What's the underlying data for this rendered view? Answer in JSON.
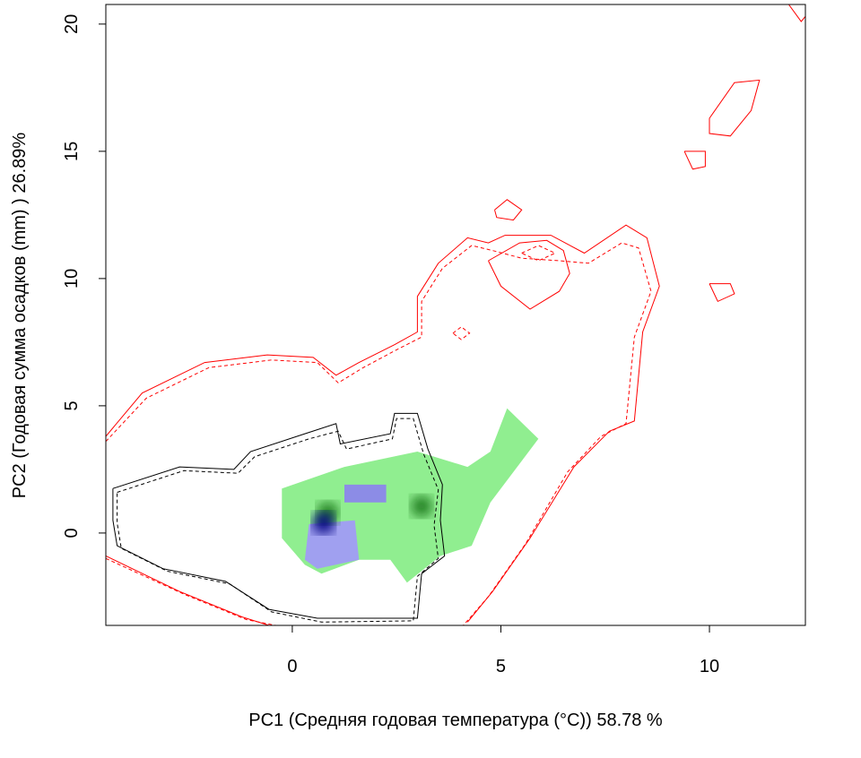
{
  "chart_data": {
    "type": "contour",
    "x_label": "PC1 (Средняя годовая температура (°C)) 58.78 %",
    "y_label": "PC2 (Годовая сумма осадков  (mm) ) 26.89%",
    "xlim": [
      -4.47,
      12.3
    ],
    "ylim": [
      -3.63,
      20.77
    ],
    "xticks": [
      0,
      5,
      10
    ],
    "yticks": [
      0,
      5,
      10,
      15,
      20
    ],
    "series": [
      {
        "color": "#90ee90",
        "style": "fill",
        "x": [
          -0.25,
          1.25,
          3.0,
          4.2,
          4.75,
          5.15,
          5.9,
          4.75,
          4.3,
          3.55,
          2.75,
          2.35,
          1.6,
          0.7,
          0.3,
          -0.25
        ],
        "values": [
          1.75,
          2.6,
          3.2,
          2.6,
          3.2,
          4.9,
          3.7,
          1.2,
          -0.5,
          -0.9,
          -1.95,
          -1.05,
          -1.05,
          -1.6,
          -1.25,
          -0.2
        ]
      },
      {
        "color": "#a0a0f0",
        "style": "fill",
        "x": [
          0.4,
          1.5,
          1.6,
          0.6,
          0.3
        ],
        "values": [
          0.35,
          0.5,
          -1.05,
          -1.4,
          -1.05
        ]
      },
      {
        "color": "#8c8ce6",
        "style": "fill",
        "x": [
          1.25,
          2.25,
          2.25,
          1.25
        ],
        "values": [
          1.9,
          1.9,
          1.2,
          1.2
        ]
      },
      {
        "color": "#1f7a1f",
        "style": "blob",
        "x": [
          0.85,
          3.1
        ],
        "values": [
          0.8,
          1.05
        ]
      },
      {
        "color": "#000080",
        "style": "blob",
        "x": [
          0.75
        ],
        "values": [
          0.4
        ]
      },
      {
        "color": "#ff0000",
        "style": "solid",
        "x": [
          -4.47,
          -3.6,
          -2.1,
          -0.6,
          0.5,
          1.05,
          1.6,
          2.45,
          3.0,
          3.0,
          3.5,
          4.2,
          4.7,
          5.1,
          6.2,
          7.0,
          8.0,
          8.5,
          8.8,
          8.4,
          8.2,
          7.6,
          6.75,
          5.7,
          4.8,
          4.2
        ],
        "values": [
          3.8,
          5.5,
          6.7,
          7.0,
          6.9,
          6.2,
          6.7,
          7.4,
          7.9,
          9.3,
          10.6,
          11.6,
          11.4,
          11.7,
          11.7,
          11.0,
          12.1,
          11.6,
          9.7,
          7.9,
          4.4,
          4.0,
          2.6,
          -0.2,
          -2.3,
          -3.5
        ]
      },
      {
        "color": "#ff0000",
        "style": "dashed",
        "x": [
          -4.47,
          -3.5,
          -2.0,
          -0.5,
          0.6,
          1.1,
          1.7,
          2.5,
          3.1,
          3.1,
          3.6,
          4.3,
          4.8,
          5.5,
          6.4,
          7.1,
          7.9,
          8.3,
          8.6,
          8.2,
          8.0,
          7.4,
          6.6,
          5.6,
          4.7,
          4.1
        ],
        "values": [
          3.6,
          5.3,
          6.5,
          6.8,
          6.7,
          5.9,
          6.5,
          7.2,
          7.7,
          9.1,
          10.4,
          11.3,
          11.1,
          10.8,
          10.7,
          10.6,
          11.4,
          11.2,
          9.5,
          7.7,
          4.3,
          3.8,
          2.4,
          -0.4,
          -2.5,
          -3.63
        ]
      },
      {
        "color": "#ff0000",
        "style": "solid",
        "x": [
          -4.47,
          -2.7,
          -1.2,
          -0.56
        ],
        "values": [
          -0.9,
          -2.3,
          -3.3,
          -3.63
        ]
      },
      {
        "color": "#ff0000",
        "style": "dashed",
        "x": [
          -4.47,
          -2.6,
          -1.1,
          -0.4
        ],
        "values": [
          -1.0,
          -2.4,
          -3.4,
          -3.63
        ]
      },
      {
        "color": "#ff0000",
        "style": "solid",
        "x": [
          4.7,
          5.0,
          5.7,
          6.4,
          6.65,
          6.5,
          6.1,
          5.45,
          4.7
        ],
        "values": [
          10.7,
          9.7,
          8.8,
          9.5,
          10.2,
          11.1,
          11.5,
          11.4,
          10.7
        ]
      },
      {
        "color": "#ff0000",
        "style": "dashed",
        "x": [
          5.5,
          5.9,
          6.3,
          5.9,
          5.5
        ],
        "values": [
          11.0,
          11.3,
          11.0,
          10.7,
          11.0
        ]
      },
      {
        "color": "#ff0000",
        "style": "dashed",
        "x": [
          3.85,
          4.05,
          4.25,
          4.05,
          3.85
        ],
        "values": [
          7.85,
          8.1,
          7.85,
          7.6,
          7.85
        ]
      },
      {
        "color": "#ff0000",
        "style": "solid",
        "x": [
          4.85,
          5.15,
          5.5,
          5.3,
          4.9,
          4.85
        ],
        "values": [
          12.7,
          13.1,
          12.7,
          12.3,
          12.4,
          12.7
        ]
      },
      {
        "color": "#ff0000",
        "style": "solid",
        "x": [
          9.4,
          9.9,
          9.9,
          9.6,
          9.4
        ],
        "values": [
          15.0,
          15.0,
          14.4,
          14.3,
          15.0
        ]
      },
      {
        "color": "#ff0000",
        "style": "solid",
        "x": [
          10.0,
          10.6,
          11.2,
          11.0,
          10.5,
          10.0,
          10.0
        ],
        "values": [
          16.3,
          17.7,
          17.8,
          16.6,
          15.6,
          15.7,
          16.3
        ]
      },
      {
        "color": "#ff0000",
        "style": "solid",
        "x": [
          10.0,
          10.5,
          10.6,
          10.2,
          10.0
        ],
        "values": [
          9.8,
          9.8,
          9.4,
          9.1,
          9.8
        ]
      },
      {
        "color": "#ff0000",
        "style": "solid",
        "x": [
          11.9,
          12.2,
          12.3
        ],
        "values": [
          20.77,
          20.1,
          20.3
        ]
      },
      {
        "color": "#000000",
        "style": "solid",
        "x": [
          -4.3,
          -2.7,
          -1.4,
          -1.0,
          0.3,
          1.05,
          1.15,
          2.35,
          2.45,
          3.0,
          3.25,
          3.6,
          3.55,
          3.65,
          3.1,
          3.0,
          0.6,
          -0.56,
          -1.6,
          -3.1,
          -4.2,
          -4.3,
          -4.3
        ],
        "values": [
          1.75,
          2.6,
          2.5,
          3.2,
          3.9,
          4.3,
          3.5,
          3.9,
          4.7,
          4.7,
          3.3,
          1.9,
          0.5,
          -0.9,
          -1.6,
          -3.35,
          -3.35,
          -3.0,
          -1.9,
          -1.4,
          -0.5,
          0.5,
          1.75
        ]
      },
      {
        "color": "#000000",
        "style": "dashed",
        "x": [
          -4.2,
          -2.6,
          -1.3,
          -0.9,
          0.4,
          1.1,
          1.3,
          2.4,
          2.5,
          2.9,
          3.15,
          3.5,
          3.4,
          3.5,
          3.0,
          2.9,
          0.7,
          -0.5,
          -1.5,
          -3.0,
          -4.1,
          -4.2,
          -4.2
        ],
        "values": [
          1.6,
          2.45,
          2.35,
          3.0,
          3.7,
          4.0,
          3.3,
          3.7,
          4.5,
          4.5,
          3.1,
          1.7,
          0.3,
          -1.0,
          -1.7,
          -3.45,
          -3.5,
          -3.1,
          -2.0,
          -1.5,
          -0.6,
          0.4,
          1.6
        ]
      }
    ]
  }
}
